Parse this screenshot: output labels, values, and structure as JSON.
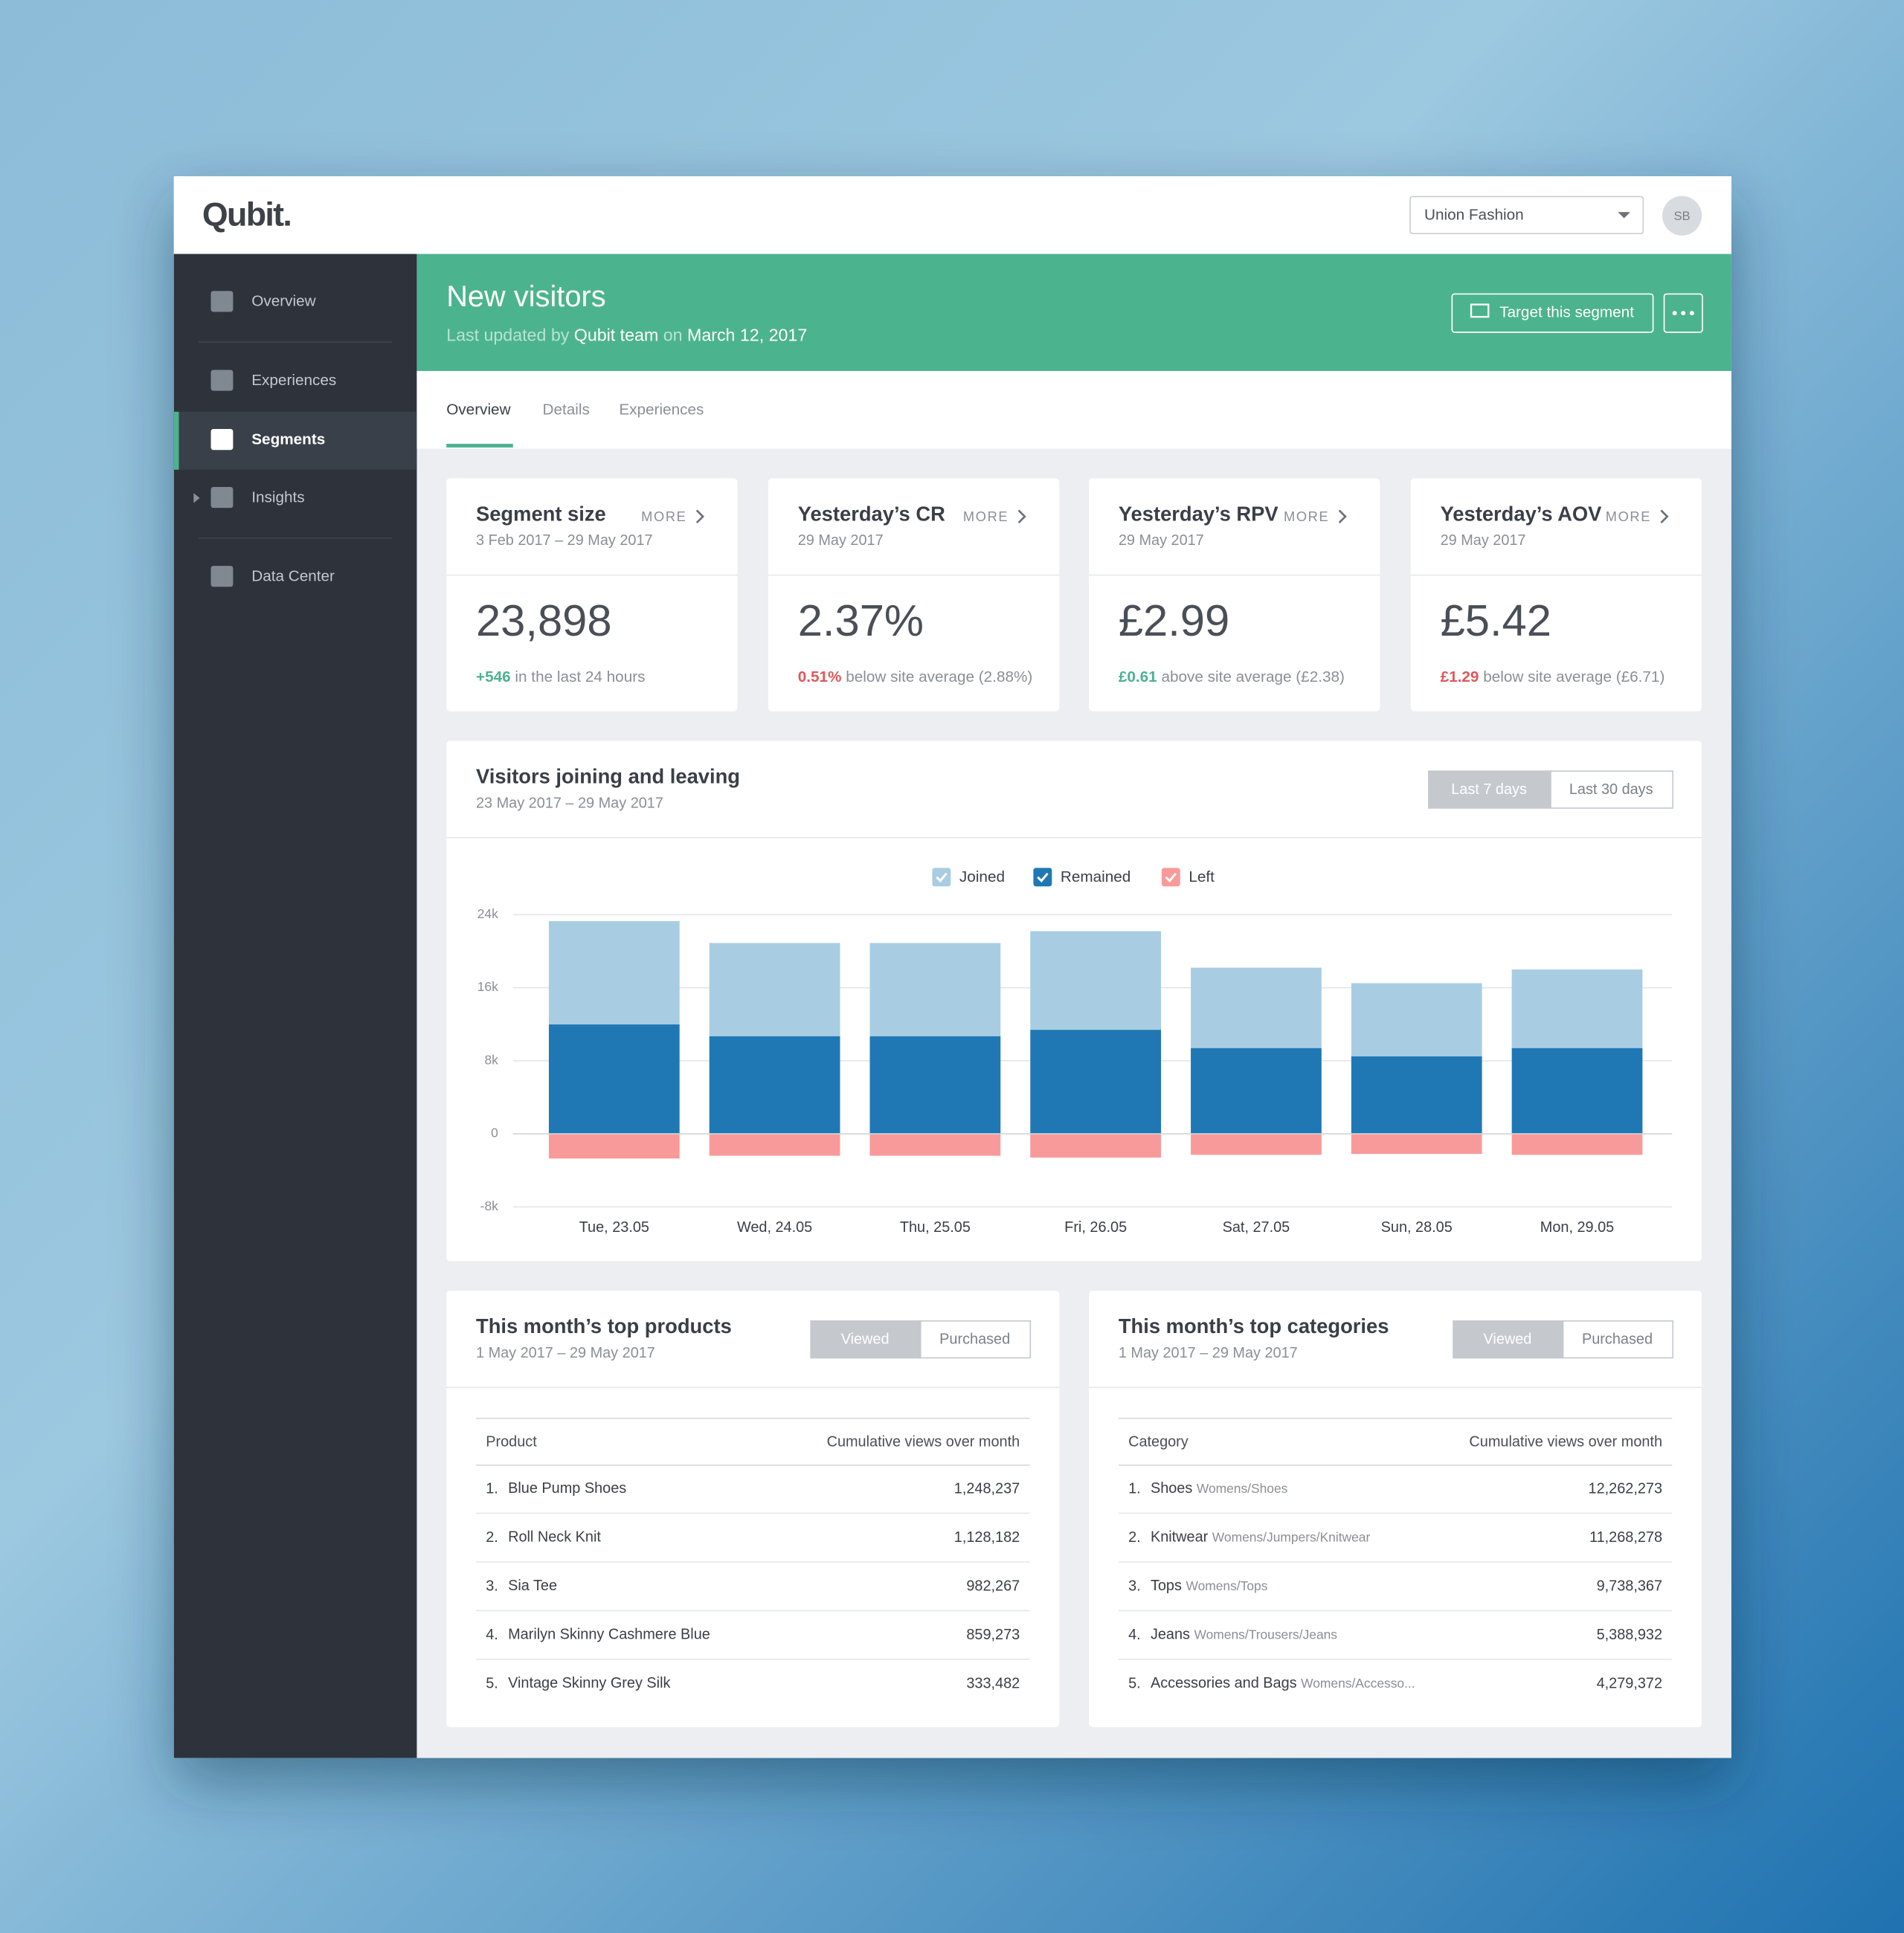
{
  "header": {
    "logo": "Qubit.",
    "account": "Union Fashion",
    "avatar": "SB"
  },
  "sidebar": {
    "items": [
      "Overview",
      "Experiences",
      "Segments",
      "Insights",
      "Data Center"
    ]
  },
  "segment": {
    "title": "New visitors",
    "updated_prefix": "Last updated by",
    "updated_by": "Qubit team",
    "updated_on": "on",
    "date": "March 12, 2017",
    "target_button": "Target this segment"
  },
  "tabs": [
    "Overview",
    "Details",
    "Experiences"
  ],
  "more": "MORE",
  "kpis": [
    {
      "title": "Segment size",
      "date": "3 Feb 2017 – 29 May 2017",
      "value": "23,898",
      "delta": "+546",
      "delta_color": "#4cb38f",
      "note": "in the last 24 hours"
    },
    {
      "title": "Yesterday’s CR",
      "date": "29 May 2017",
      "value": "2.37%",
      "delta": "0.51%",
      "delta_color": "#e0575b",
      "note": "below site average (2.88%)"
    },
    {
      "title": "Yesterday’s RPV",
      "date": "29 May 2017",
      "value": "£2.99",
      "delta": "£0.61",
      "delta_color": "#4cb38f",
      "note": "above site average (£2.38)"
    },
    {
      "title": "Yesterday’s AOV",
      "date": "29 May 2017",
      "value": "£5.42",
      "delta": "£1.29",
      "delta_color": "#e0575b",
      "note": "below site average (£6.71)"
    }
  ],
  "chart_card": {
    "title": "Visitors joining and leaving",
    "date": "23 May 2017 – 29 May 2017",
    "ranges": [
      "Last 7 days",
      "Last 30 days"
    ]
  },
  "chart_data": {
    "type": "stacked-bar",
    "categories": [
      "Tue, 23.05",
      "Wed, 24.05",
      "Thu, 25.05",
      "Fri, 26.05",
      "Sat, 27.05",
      "Sun, 28.05",
      "Mon, 29.05"
    ],
    "series": [
      {
        "name": "Joined",
        "color": "#a8cde2",
        "values": [
          11300,
          10200,
          10200,
          10800,
          8800,
          8000,
          8600
        ]
      },
      {
        "name": "Remained",
        "color": "#1f78b4",
        "values": [
          12000,
          10700,
          10700,
          11400,
          9400,
          8500,
          9400
        ]
      },
      {
        "name": "Left",
        "color": "#f99a9a",
        "values": [
          -2700,
          -2400,
          -2400,
          -2600,
          -2300,
          -2200,
          -2300
        ]
      }
    ],
    "ylim": [
      -8000,
      24000
    ],
    "yticks": [
      {
        "value": -8000,
        "label": "-8k"
      },
      0,
      {
        "value": 8000,
        "label": "8k"
      },
      {
        "value": 16000,
        "label": "16k"
      },
      {
        "value": 24000,
        "label": "24k"
      }
    ],
    "grid": true
  },
  "tables": [
    {
      "title": "This month’s top products",
      "date": "1 May 2017 – 29 May 2017",
      "toggles": [
        "Viewed",
        "Purchased"
      ],
      "columns": [
        "Product",
        "Cumulative views over month"
      ],
      "rows": [
        [
          "1.",
          "Blue Pump Shoes",
          "1,248,237"
        ],
        [
          "2.",
          "Roll Neck Knit",
          "1,128,182"
        ],
        [
          "3.",
          "Sia Tee",
          "982,267"
        ],
        [
          "4.",
          "Marilyn Skinny Cashmere Blue",
          "859,273"
        ],
        [
          "5.",
          "Vintage Skinny Grey Silk",
          "333,482"
        ]
      ]
    },
    {
      "title": "This month’s top categories",
      "date": "1 May 2017 – 29 May 2017",
      "toggles": [
        "Viewed",
        "Purchased"
      ],
      "columns": [
        "Category",
        "Cumulative views over month"
      ],
      "rows": [
        [
          "1.",
          "Shoes",
          "Womens/Shoes",
          "12,262,273"
        ],
        [
          "2.",
          "Knitwear",
          "Womens/Jumpers/Knitwear",
          "11,268,278"
        ],
        [
          "3.",
          "Tops",
          "Womens/Tops",
          "9,738,367"
        ],
        [
          "4.",
          "Jeans",
          "Womens/Trousers/Jeans",
          "5,388,932"
        ],
        [
          "5.",
          "Accessories and Bags",
          "Womens/Accesso...",
          "4,279,372"
        ]
      ]
    }
  ]
}
